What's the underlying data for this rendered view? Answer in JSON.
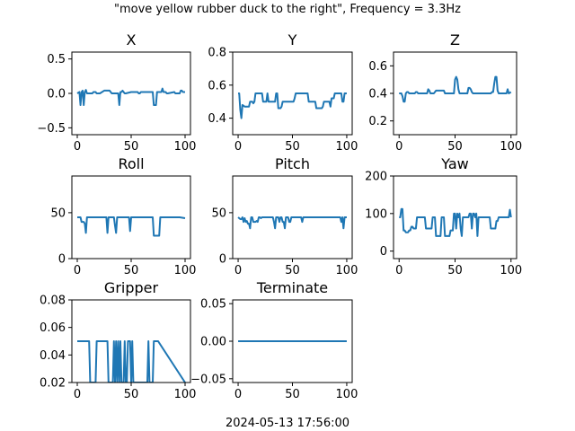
{
  "figure": {
    "suptitle": "\"move yellow rubber duck to the right\", Frequency = 3.3Hz",
    "footer": "2024-05-13 17:56:00",
    "line_color": "#1f77b4"
  },
  "chart_data": [
    {
      "type": "line",
      "title": "X",
      "xlim": [
        -5,
        105
      ],
      "ylim": [
        -0.6,
        0.6
      ],
      "xticks": [
        0,
        50,
        100
      ],
      "yticks": [
        -0.5,
        0.0,
        0.5
      ],
      "xtick_labels": [
        "0",
        "50",
        "100"
      ],
      "ytick_labels": [
        "−0.5",
        "0.0",
        "0.5"
      ],
      "series": [
        {
          "x": [
            0,
            2,
            3,
            4,
            5,
            6,
            7,
            8,
            9,
            10,
            11,
            14,
            15,
            16,
            17,
            18,
            19,
            20,
            21,
            25,
            26,
            27,
            28,
            30,
            31,
            32,
            33,
            34,
            38,
            39,
            40,
            41,
            42,
            43,
            44,
            45,
            50,
            51,
            52,
            53,
            54,
            56,
            57,
            58,
            59,
            70,
            71,
            72,
            73,
            74,
            75,
            78,
            79,
            80,
            81,
            82,
            83,
            84,
            90,
            91,
            92,
            95,
            96,
            97,
            98,
            100
          ],
          "y": [
            0,
            0.02,
            -0.17,
            0.02,
            0.04,
            -0.17,
            0.02,
            0.05,
            0,
            0,
            0,
            0,
            0.02,
            0.02,
            0.02,
            0,
            0,
            0,
            0,
            0.04,
            0.04,
            0.04,
            0.04,
            0.04,
            0.02,
            0,
            0,
            0,
            0,
            -0.17,
            0.02,
            0.02,
            0.04,
            0.02,
            0,
            0,
            0.02,
            0.02,
            0.02,
            0.02,
            0.02,
            0.02,
            0,
            0,
            0.02,
            0.02,
            -0.17,
            -0.17,
            -0.17,
            0.02,
            0.02,
            0.02,
            0.07,
            0.02,
            0.02,
            0.02,
            0,
            0,
            0.02,
            0,
            0,
            0,
            0.04,
            0.04,
            0.02,
            0.02
          ]
        }
      ]
    },
    {
      "type": "line",
      "title": "Y",
      "xlim": [
        -5,
        105
      ],
      "ylim": [
        0.3,
        0.8
      ],
      "xticks": [
        0,
        50,
        100
      ],
      "yticks": [
        0.4,
        0.6,
        0.8
      ],
      "xtick_labels": [
        "0",
        "50",
        "100"
      ],
      "ytick_labels": [
        "0.4",
        "0.6",
        "0.8"
      ],
      "series": [
        {
          "x": [
            0,
            1,
            2,
            3,
            4,
            6,
            7,
            10,
            11,
            12,
            13,
            14,
            15,
            16,
            17,
            22,
            23,
            24,
            25,
            26,
            27,
            28,
            30,
            34,
            35,
            36,
            37,
            38,
            39,
            40,
            41,
            45,
            46,
            47,
            48,
            50,
            51,
            52,
            53,
            54,
            58,
            62,
            63,
            64,
            65,
            66,
            68,
            70,
            71,
            72,
            73,
            74,
            75,
            76,
            77,
            78,
            79,
            80,
            84,
            85,
            86,
            88,
            89,
            90,
            95,
            96,
            97,
            98,
            100
          ],
          "y": [
            0.55,
            0.55,
            0.45,
            0.4,
            0.48,
            0.47,
            0.47,
            0.47,
            0.5,
            0.5,
            0.5,
            0.49,
            0.5,
            0.55,
            0.55,
            0.55,
            0.5,
            0.5,
            0.5,
            0.5,
            0.55,
            0.5,
            0.5,
            0.5,
            0.55,
            0.55,
            0.46,
            0.46,
            0.46,
            0.47,
            0.5,
            0.5,
            0.5,
            0.5,
            0.5,
            0.5,
            0.5,
            0.52,
            0.55,
            0.55,
            0.55,
            0.55,
            0.55,
            0.55,
            0.5,
            0.5,
            0.5,
            0.5,
            0.5,
            0.46,
            0.46,
            0.46,
            0.46,
            0.46,
            0.46,
            0.47,
            0.5,
            0.5,
            0.5,
            0.47,
            0.52,
            0.52,
            0.55,
            0.55,
            0.55,
            0.5,
            0.5,
            0.55,
            0.55
          ]
        }
      ]
    },
    {
      "type": "line",
      "title": "Z",
      "xlim": [
        -5,
        105
      ],
      "ylim": [
        0.1,
        0.7
      ],
      "xticks": [
        0,
        50,
        100
      ],
      "yticks": [
        0.2,
        0.4,
        0.6
      ],
      "xtick_labels": [
        "0",
        "50",
        "100"
      ],
      "ytick_labels": [
        "0.2",
        "0.4",
        "0.6"
      ],
      "series": [
        {
          "x": [
            0,
            2,
            3,
            4,
            5,
            6,
            7,
            8,
            9,
            10,
            11,
            14,
            15,
            16,
            17,
            18,
            19,
            20,
            21,
            25,
            26,
            27,
            28,
            30,
            31,
            32,
            33,
            34,
            40,
            41,
            42,
            43,
            44,
            45,
            48,
            49,
            50,
            51,
            52,
            53,
            54,
            55,
            56,
            57,
            58,
            59,
            60,
            61,
            62,
            63,
            64,
            65,
            66,
            70,
            75,
            80,
            81,
            82,
            83,
            84,
            85,
            86,
            87,
            88,
            89,
            90,
            95,
            96,
            97,
            98,
            100
          ],
          "y": [
            0.4,
            0.4,
            0.38,
            0.34,
            0.34,
            0.4,
            0.41,
            0.41,
            0.4,
            0.4,
            0.4,
            0.4,
            0.41,
            0.41,
            0.4,
            0.4,
            0.4,
            0.4,
            0.4,
            0.4,
            0.43,
            0.42,
            0.4,
            0.4,
            0.4,
            0.41,
            0.42,
            0.42,
            0.42,
            0.4,
            0.4,
            0.4,
            0.4,
            0.4,
            0.4,
            0.4,
            0.5,
            0.52,
            0.5,
            0.43,
            0.4,
            0.4,
            0.4,
            0.4,
            0.4,
            0.4,
            0.4,
            0.4,
            0.44,
            0.44,
            0.43,
            0.41,
            0.4,
            0.4,
            0.4,
            0.4,
            0.4,
            0.4,
            0.41,
            0.41,
            0.47,
            0.52,
            0.52,
            0.42,
            0.4,
            0.4,
            0.4,
            0.4,
            0.43,
            0.4,
            0.41
          ]
        }
      ]
    },
    {
      "type": "line",
      "title": "Roll",
      "xlim": [
        -5,
        105
      ],
      "ylim": [
        0,
        90
      ],
      "xticks": [
        0,
        50,
        100
      ],
      "yticks": [
        0,
        50
      ],
      "xtick_labels": [
        "0",
        "50",
        "100"
      ],
      "ytick_labels": [
        "0",
        "50"
      ],
      "series": [
        {
          "x": [
            0,
            3,
            4,
            5,
            6,
            7,
            8,
            9,
            10,
            11,
            12,
            13,
            14,
            20,
            21,
            24,
            25,
            26,
            27,
            28,
            29,
            30,
            31,
            32,
            33,
            34,
            35,
            36,
            37,
            38,
            39,
            40,
            41,
            42,
            43,
            44,
            45,
            46,
            47,
            48,
            49,
            50,
            55,
            60,
            65,
            69,
            70,
            71,
            72,
            73,
            74,
            75,
            76,
            77,
            78,
            80,
            85,
            90,
            95,
            100
          ],
          "y": [
            45,
            45,
            40,
            40,
            40,
            38,
            28,
            45,
            45,
            45,
            45,
            45,
            45,
            45,
            45,
            45,
            45,
            45,
            45,
            28,
            45,
            45,
            45,
            45,
            45,
            45,
            36,
            28,
            45,
            45,
            45,
            45,
            45,
            45,
            45,
            45,
            45,
            45,
            45,
            45,
            30,
            45,
            45,
            45,
            45,
            45,
            45,
            25,
            25,
            25,
            25,
            25,
            25,
            45,
            45,
            45,
            45,
            45,
            45,
            44
          ]
        }
      ]
    },
    {
      "type": "line",
      "title": "Pitch",
      "xlim": [
        -5,
        105
      ],
      "ylim": [
        0,
        90
      ],
      "xticks": [
        0,
        50,
        100
      ],
      "yticks": [
        0,
        50
      ],
      "xtick_labels": [
        "0",
        "50",
        "100"
      ],
      "ytick_labels": [
        "0",
        "50"
      ],
      "series": [
        {
          "x": [
            0,
            2,
            3,
            4,
            5,
            6,
            7,
            8,
            9,
            10,
            11,
            12,
            13,
            14,
            15,
            16,
            17,
            18,
            19,
            20,
            21,
            22,
            25,
            26,
            27,
            28,
            30,
            31,
            32,
            33,
            34,
            35,
            36,
            37,
            38,
            39,
            40,
            41,
            42,
            43,
            44,
            45,
            46,
            47,
            48,
            49,
            50,
            51,
            52,
            53,
            54,
            55,
            56,
            57,
            58,
            59,
            60,
            61,
            65,
            70,
            75,
            80,
            85,
            90,
            94,
            95,
            96,
            97,
            98,
            99,
            100
          ],
          "y": [
            45,
            43,
            43,
            45,
            40,
            44,
            40,
            41,
            38,
            38,
            33,
            45,
            45,
            40,
            40,
            40,
            41,
            40,
            45,
            45,
            44,
            45,
            45,
            45,
            45,
            45,
            45,
            45,
            45,
            40,
            33,
            45,
            45,
            45,
            40,
            45,
            45,
            40,
            40,
            33,
            45,
            45,
            45,
            40,
            40,
            45,
            45,
            45,
            45,
            45,
            45,
            45,
            45,
            45,
            45,
            40,
            45,
            45,
            45,
            45,
            45,
            45,
            45,
            45,
            45,
            40,
            45,
            33,
            45,
            45,
            45
          ]
        }
      ]
    },
    {
      "type": "line",
      "title": "Yaw",
      "xlim": [
        -5,
        105
      ],
      "ylim": [
        -20,
        200
      ],
      "xticks": [
        0,
        50,
        100
      ],
      "yticks": [
        0,
        100,
        200
      ],
      "xtick_labels": [
        "0",
        "50",
        "100"
      ],
      "ytick_labels": [
        "0",
        "100",
        "200"
      ],
      "series": [
        {
          "x": [
            0,
            1,
            2,
            3,
            4,
            5,
            6,
            7,
            8,
            9,
            10,
            11,
            12,
            13,
            14,
            15,
            16,
            17,
            18,
            19,
            20,
            21,
            22,
            23,
            24,
            25,
            26,
            27,
            28,
            29,
            30,
            31,
            32,
            33,
            34,
            35,
            36,
            37,
            38,
            39,
            40,
            41,
            42,
            43,
            44,
            45,
            46,
            47,
            48,
            49,
            50,
            51,
            52,
            53,
            54,
            55,
            56,
            57,
            58,
            59,
            60,
            61,
            62,
            63,
            64,
            65,
            66,
            67,
            68,
            69,
            70,
            71,
            72,
            73,
            74,
            75,
            76,
            77,
            78,
            79,
            80,
            81,
            82,
            83,
            84,
            85,
            86,
            87,
            88,
            89,
            90,
            91,
            92,
            93,
            94,
            95,
            96,
            97,
            98,
            99,
            100
          ],
          "y": [
            90,
            90,
            112,
            112,
            55,
            55,
            50,
            50,
            50,
            55,
            55,
            65,
            65,
            60,
            60,
            60,
            90,
            90,
            90,
            90,
            90,
            90,
            90,
            90,
            60,
            60,
            60,
            60,
            60,
            60,
            90,
            90,
            90,
            40,
            40,
            40,
            40,
            40,
            90,
            90,
            90,
            40,
            40,
            40,
            40,
            40,
            55,
            55,
            55,
            100,
            100,
            60,
            100,
            90,
            100,
            60,
            40,
            90,
            90,
            90,
            90,
            90,
            90,
            100,
            100,
            60,
            100,
            100,
            90,
            100,
            40,
            90,
            90,
            90,
            90,
            90,
            90,
            90,
            90,
            90,
            90,
            90,
            60,
            60,
            60,
            60,
            60,
            80,
            80,
            90,
            90,
            90,
            90,
            90,
            90,
            90,
            90,
            90,
            90,
            110,
            90
          ]
        }
      ]
    },
    {
      "type": "line",
      "title": "Gripper",
      "xlim": [
        -5,
        105
      ],
      "ylim": [
        0.02,
        0.08
      ],
      "xticks": [
        0,
        50,
        100
      ],
      "yticks": [
        0.02,
        0.04,
        0.06,
        0.08
      ],
      "xtick_labels": [
        "0",
        "50",
        "100"
      ],
      "ytick_labels": [
        "0.02",
        "0.04",
        "0.06",
        "0.08"
      ],
      "series": [
        {
          "x": [
            0,
            11,
            12,
            17,
            18,
            28,
            29,
            33,
            34,
            35,
            36,
            37,
            38,
            39,
            40,
            41,
            42,
            43,
            44,
            45,
            46,
            47,
            49,
            50,
            51,
            52,
            53,
            65,
            66,
            67,
            70,
            71,
            75,
            100
          ],
          "y": [
            0.05,
            0.05,
            0.02,
            0.02,
            0.05,
            0.05,
            0.02,
            0.02,
            0.05,
            0.02,
            0.05,
            0.02,
            0.05,
            0.02,
            0.05,
            0.02,
            0.02,
            0.02,
            0.05,
            0.02,
            0.02,
            0.05,
            0.05,
            0.02,
            0.05,
            0.02,
            0.02,
            0.02,
            0.05,
            0.02,
            0.02,
            0.05,
            0.05,
            0.02
          ]
        }
      ]
    },
    {
      "type": "line",
      "title": "Terminate",
      "xlim": [
        -5,
        105
      ],
      "ylim": [
        -0.055,
        0.055
      ],
      "xticks": [
        0,
        50,
        100
      ],
      "yticks": [
        -0.05,
        0.0,
        0.05
      ],
      "xtick_labels": [
        "0",
        "50",
        "100"
      ],
      "ytick_labels": [
        "−0.05",
        "0.00",
        "0.05"
      ],
      "series": [
        {
          "x": [
            0,
            100
          ],
          "y": [
            0,
            0
          ]
        }
      ]
    }
  ]
}
